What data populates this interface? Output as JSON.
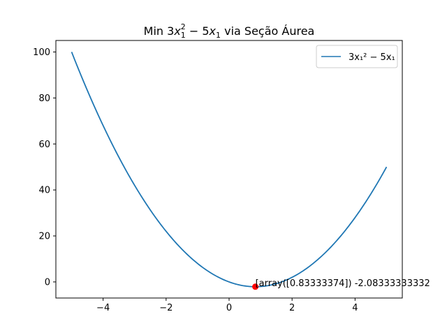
{
  "chart_data": {
    "type": "line",
    "title": {
      "prefix": "Min 3",
      "x1": "x",
      "sub1": "1",
      "sup2": "2",
      "mid": " − 5",
      "x2": "x",
      "sub2": "1",
      "suffix": " via Seção Áurea"
    },
    "xlim": [
      -5.5,
      5.5
    ],
    "ylim": [
      -7,
      105
    ],
    "x_ticks": [
      -4,
      -2,
      0,
      2,
      4
    ],
    "x_tick_labels": [
      "−4",
      "−2",
      "0",
      "2",
      "4"
    ],
    "y_ticks": [
      0,
      20,
      40,
      60,
      80,
      100
    ],
    "y_tick_labels": [
      "0",
      "20",
      "40",
      "60",
      "80",
      "100"
    ],
    "grid": false,
    "legend_position": "top-right",
    "series": [
      {
        "name": "3x₁² − 5x₁",
        "color": "#1f77b4",
        "x_range": [
          -5,
          5
        ],
        "function": "3x^2 - 5x",
        "points": [
          [
            -5.0,
            100.0
          ],
          [
            -4.5,
            83.25
          ],
          [
            -4.0,
            68.0
          ],
          [
            -3.5,
            54.25
          ],
          [
            -3.0,
            42.0
          ],
          [
            -2.5,
            31.25
          ],
          [
            -2.0,
            22.0
          ],
          [
            -1.5,
            14.25
          ],
          [
            -1.0,
            8.0
          ],
          [
            -0.5,
            3.25
          ],
          [
            0.0,
            0.0
          ],
          [
            0.5,
            -1.75
          ],
          [
            0.8333,
            -2.0833
          ],
          [
            1.0,
            -2.0
          ],
          [
            1.5,
            -0.75
          ],
          [
            2.0,
            2.0
          ],
          [
            2.5,
            6.25
          ],
          [
            3.0,
            12.0
          ],
          [
            3.5,
            19.25
          ],
          [
            4.0,
            28.0
          ],
          [
            4.5,
            38.25
          ],
          [
            5.0,
            50.0
          ]
        ]
      }
    ],
    "minimum_point": {
      "x": 0.83333374,
      "y": -2.0833333,
      "color": "#ff0000"
    },
    "annotation": {
      "text": "[array([0.83333374]) -2.08333333332",
      "x": 0.83333374,
      "y": -2.0833333
    }
  }
}
